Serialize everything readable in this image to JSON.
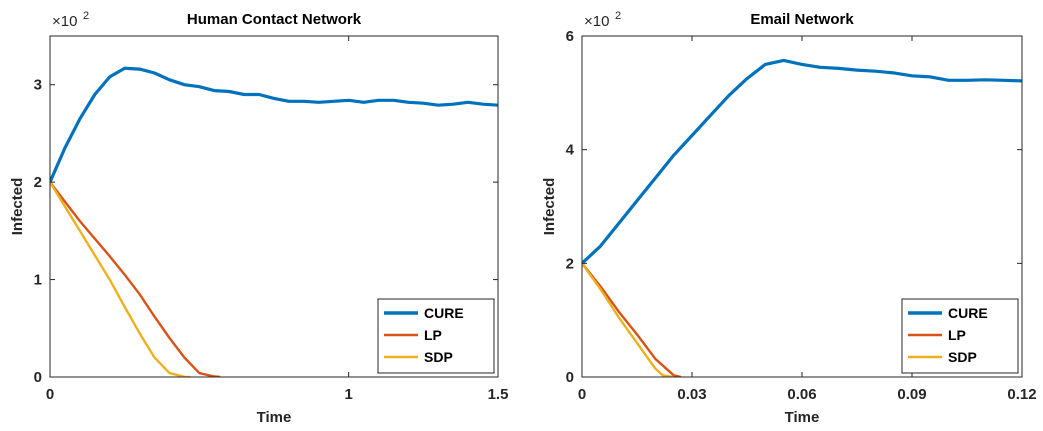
{
  "chart_data": [
    {
      "type": "line",
      "title": "Human Contact Network",
      "xlabel": "Time",
      "ylabel": "Infected",
      "xlim": [
        0,
        1.5
      ],
      "ylim": [
        0,
        3.5
      ],
      "y_exponent_label": "×10",
      "y_exponent": "2",
      "xticks": [
        0,
        1,
        1.5
      ],
      "xtick_labels": [
        "0",
        "1",
        "1.5"
      ],
      "yticks": [
        0,
        1,
        2,
        3
      ],
      "ytick_labels": [
        "0",
        "1",
        "2",
        "3"
      ],
      "legend_position": "bottom-right",
      "grid": false,
      "series": [
        {
          "name": "CURE",
          "color": "#0072BD",
          "x": [
            0,
            0.05,
            0.1,
            0.15,
            0.2,
            0.25,
            0.3,
            0.35,
            0.4,
            0.45,
            0.5,
            0.55,
            0.6,
            0.65,
            0.7,
            0.75,
            0.8,
            0.85,
            0.9,
            0.95,
            1.0,
            1.05,
            1.1,
            1.15,
            1.2,
            1.25,
            1.3,
            1.35,
            1.4,
            1.45,
            1.5
          ],
          "y": [
            2.0,
            2.35,
            2.65,
            2.9,
            3.08,
            3.17,
            3.16,
            3.12,
            3.05,
            3.0,
            2.98,
            2.94,
            2.93,
            2.9,
            2.9,
            2.86,
            2.83,
            2.83,
            2.82,
            2.83,
            2.84,
            2.82,
            2.84,
            2.84,
            2.82,
            2.81,
            2.79,
            2.8,
            2.82,
            2.8,
            2.79
          ]
        },
        {
          "name": "LP",
          "color": "#D95319",
          "x": [
            0,
            0.05,
            0.1,
            0.15,
            0.2,
            0.25,
            0.3,
            0.35,
            0.4,
            0.45,
            0.5,
            0.55,
            0.57
          ],
          "y": [
            2.0,
            1.8,
            1.6,
            1.42,
            1.24,
            1.05,
            0.85,
            0.62,
            0.4,
            0.2,
            0.04,
            0.005,
            0.0
          ]
        },
        {
          "name": "SDP",
          "color": "#EDB120",
          "x": [
            0,
            0.05,
            0.1,
            0.15,
            0.2,
            0.25,
            0.3,
            0.35,
            0.4,
            0.45,
            0.47
          ],
          "y": [
            2.0,
            1.75,
            1.5,
            1.25,
            1.0,
            0.72,
            0.45,
            0.2,
            0.04,
            0.002,
            0.0
          ]
        }
      ]
    },
    {
      "type": "line",
      "title": "Email Network",
      "xlabel": "Time",
      "ylabel": "Infected",
      "xlim": [
        0,
        0.12
      ],
      "ylim": [
        0,
        6
      ],
      "y_exponent_label": "×10",
      "y_exponent": "2",
      "xticks": [
        0,
        0.03,
        0.06,
        0.09,
        0.12
      ],
      "xtick_labels": [
        "0",
        "0.03",
        "0.06",
        "0.09",
        "0.12"
      ],
      "yticks": [
        0,
        2,
        4,
        6
      ],
      "ytick_labels": [
        "0",
        "2",
        "4",
        "6"
      ],
      "legend_position": "bottom-right",
      "grid": false,
      "series": [
        {
          "name": "CURE",
          "color": "#0072BD",
          "x": [
            0,
            0.005,
            0.01,
            0.015,
            0.02,
            0.025,
            0.03,
            0.035,
            0.04,
            0.045,
            0.05,
            0.055,
            0.06,
            0.065,
            0.07,
            0.075,
            0.08,
            0.085,
            0.09,
            0.095,
            0.1,
            0.105,
            0.11,
            0.115,
            0.12
          ],
          "y": [
            2.0,
            2.3,
            2.7,
            3.1,
            3.5,
            3.9,
            4.25,
            4.6,
            4.95,
            5.25,
            5.5,
            5.57,
            5.5,
            5.45,
            5.43,
            5.4,
            5.38,
            5.35,
            5.3,
            5.28,
            5.22,
            5.22,
            5.23,
            5.22,
            5.21
          ]
        },
        {
          "name": "LP",
          "color": "#D95319",
          "x": [
            0,
            0.005,
            0.01,
            0.015,
            0.02,
            0.025,
            0.027
          ],
          "y": [
            2.0,
            1.6,
            1.15,
            0.75,
            0.32,
            0.03,
            0.0
          ]
        },
        {
          "name": "SDP",
          "color": "#EDB120",
          "x": [
            0,
            0.005,
            0.01,
            0.015,
            0.02,
            0.022,
            0.025
          ],
          "y": [
            2.0,
            1.55,
            1.05,
            0.6,
            0.15,
            0.03,
            0.0
          ]
        }
      ]
    }
  ]
}
